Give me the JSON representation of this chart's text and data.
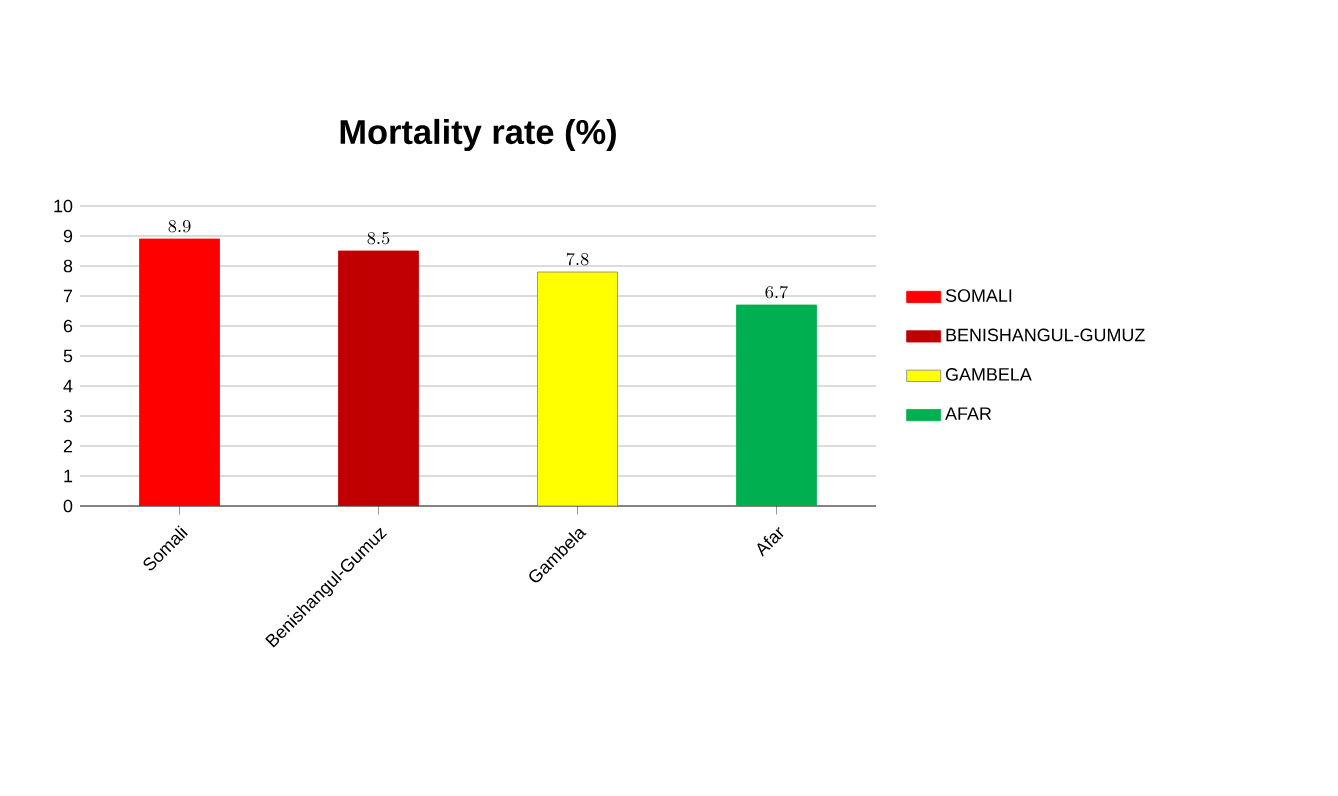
{
  "chart_data": {
    "type": "bar",
    "title": "Mortality rate (%)",
    "categories": [
      "Somali",
      "Benishangul-Gumuz",
      "Gambela",
      "Afar"
    ],
    "series": [
      {
        "name": "SOMALI",
        "color": "#ff0000",
        "values": [
          8.9,
          null,
          null,
          null
        ]
      },
      {
        "name": "BENISHANGUL-GUMUZ",
        "color": "#c00000",
        "values": [
          null,
          8.5,
          null,
          null
        ]
      },
      {
        "name": "GAMBELA",
        "color": "#ffff00",
        "values": [
          null,
          null,
          7.8,
          null
        ]
      },
      {
        "name": "AFAR",
        "color": "#00b050",
        "values": [
          null,
          null,
          null,
          6.7
        ]
      }
    ],
    "ylim": [
      0,
      10
    ],
    "yticks": [
      0,
      1,
      2,
      3,
      4,
      5,
      6,
      7,
      8,
      9,
      10
    ],
    "grid": "y",
    "legend": "right",
    "data_labels": true
  }
}
